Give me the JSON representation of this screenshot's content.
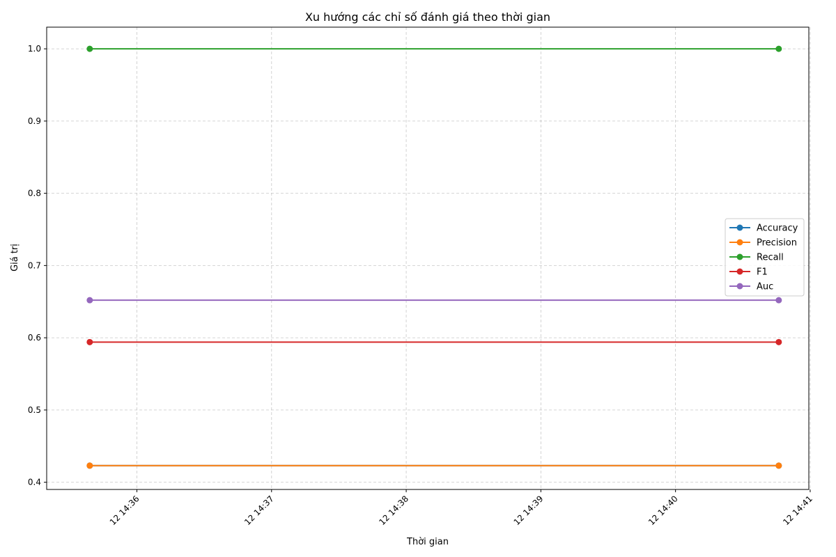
{
  "chart_data": {
    "type": "line",
    "title": "Xu hướng các chỉ số đánh giá theo thời gian",
    "xlabel": "Thời gian",
    "ylabel": "Giá trị",
    "x": [
      "14:35:39",
      "14:40:46"
    ],
    "x_ticks": [
      "12 14:36",
      "12 14:37",
      "12 14:38",
      "12 14:39",
      "12 14:40",
      "12 14:41"
    ],
    "x_tick_minutes": [
      36,
      37,
      38,
      39,
      40,
      41
    ],
    "x_range_minutes": [
      35.33,
      40.99
    ],
    "ylim": [
      0.39,
      1.03
    ],
    "y_ticks": [
      "0.4",
      "0.5",
      "0.6",
      "0.7",
      "0.8",
      "0.9",
      "1.0"
    ],
    "grid": true,
    "legend_position": "center-right",
    "series": [
      {
        "name": "Accuracy",
        "color": "#1f77b4",
        "values": [
          0.423,
          0.423
        ]
      },
      {
        "name": "Precision",
        "color": "#ff7f0e",
        "values": [
          0.423,
          0.423
        ]
      },
      {
        "name": "Recall",
        "color": "#2ca02c",
        "values": [
          1.0,
          1.0
        ]
      },
      {
        "name": "F1",
        "color": "#d62728",
        "values": [
          0.594,
          0.594
        ]
      },
      {
        "name": "Auc",
        "color": "#9467bd",
        "values": [
          0.652,
          0.652
        ]
      }
    ]
  }
}
